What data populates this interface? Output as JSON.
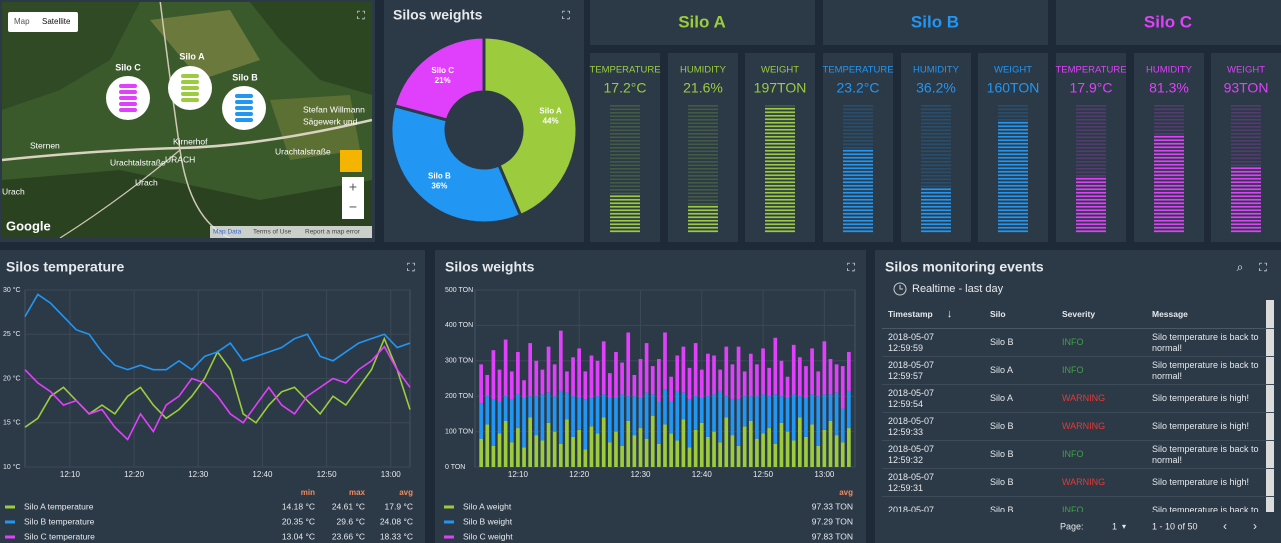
{
  "map": {
    "buttons": [
      "Map",
      "Satellite"
    ],
    "markers": [
      {
        "label": "Silo C",
        "color": "#e040fb"
      },
      {
        "label": "Silo A",
        "color": "#9ccc3d"
      },
      {
        "label": "Silo B",
        "color": "#2196f3"
      }
    ],
    "places": [
      "Stefan Willmann",
      "Sägewerk und",
      "Sternen",
      "Kirnerhof",
      "URACH",
      "Urachtalstraße",
      "Urach",
      "Urach",
      "Urachtalstraße"
    ],
    "logo": "Google",
    "footer": [
      "Map Data",
      "Terms of Use",
      "Report a map error"
    ]
  },
  "chart_data": [
    {
      "type": "pie",
      "title": "Silos weights",
      "categories": [
        "Silo A",
        "Silo B",
        "Silo C"
      ],
      "values": [
        44,
        36,
        21
      ],
      "value_labels": [
        "44%",
        "36%",
        "21%"
      ],
      "colors": [
        "#9ccc3d",
        "#2196f3",
        "#e040fb"
      ]
    },
    {
      "type": "line",
      "title": "Silos temperature",
      "x": [
        "12:03",
        "12:05",
        "12:07",
        "12:09",
        "12:11",
        "12:13",
        "12:15",
        "12:17",
        "12:19",
        "12:21",
        "12:23",
        "12:25",
        "12:27",
        "12:29",
        "12:31",
        "12:33",
        "12:35",
        "12:37",
        "12:39",
        "12:41",
        "12:43",
        "12:45",
        "12:47",
        "12:49",
        "12:51",
        "12:53",
        "12:55",
        "12:57",
        "12:59",
        "13:01",
        "13:03"
      ],
      "xlim": [
        "12:03",
        "13:03"
      ],
      "xticks": [
        "12:10",
        "12:20",
        "12:30",
        "12:40",
        "12:50",
        "13:00"
      ],
      "ylim": [
        10,
        30
      ],
      "yticks": [
        {
          "value": 10,
          "label": "10 °C"
        },
        {
          "value": 15,
          "label": "15 °C"
        },
        {
          "value": 20,
          "label": "20 °C"
        },
        {
          "value": 25,
          "label": "25 °C"
        },
        {
          "value": 30,
          "label": "30 °C"
        }
      ],
      "grid": true,
      "stat_headers": [
        "min",
        "max",
        "avg"
      ],
      "series": [
        {
          "name": "Silo A temperature",
          "color": "#9ccc3d",
          "values": [
            14.5,
            15.5,
            18,
            19,
            17.5,
            16,
            17,
            16,
            18,
            19,
            17,
            15.5,
            16.5,
            18,
            20,
            23,
            21,
            16,
            15,
            17,
            18.5,
            19,
            17.5,
            16,
            18,
            17,
            19,
            21,
            24.5,
            21,
            16.5
          ],
          "stats": [
            "14.18 °C",
            "24.61 °C",
            "17.9 °C"
          ]
        },
        {
          "name": "Silo B temperature",
          "color": "#2196f3",
          "values": [
            27,
            29.5,
            28.5,
            27,
            25.5,
            25,
            23,
            21.5,
            21,
            21.5,
            21,
            21,
            22,
            21,
            22.5,
            23,
            24,
            22,
            22.5,
            23,
            23.5,
            24.5,
            25,
            22.5,
            22,
            23,
            24,
            24.5,
            25,
            23.5,
            24
          ],
          "stats": [
            "20.35 °C",
            "29.6 °C",
            "24.08 °C"
          ]
        },
        {
          "name": "Silo C temperature",
          "color": "#e040fb",
          "values": [
            21,
            19.5,
            18.5,
            17,
            17.5,
            16,
            16.5,
            14.5,
            13.1,
            16,
            14,
            17,
            18,
            20,
            19.5,
            18,
            16,
            15,
            17,
            19,
            17,
            16,
            18,
            19,
            20,
            19.5,
            21,
            22,
            23.6,
            21,
            19
          ],
          "stats": [
            "13.04 °C",
            "23.66 °C",
            "18.33 °C"
          ]
        }
      ]
    },
    {
      "type": "bar",
      "stacked": true,
      "title": "Silos weights",
      "x": [
        "12:04",
        "12:05",
        "12:06",
        "12:07",
        "12:08",
        "12:09",
        "12:10",
        "12:11",
        "12:12",
        "12:13",
        "12:14",
        "12:15",
        "12:16",
        "12:17",
        "12:18",
        "12:19",
        "12:20",
        "12:21",
        "12:22",
        "12:23",
        "12:24",
        "12:25",
        "12:26",
        "12:27",
        "12:28",
        "12:29",
        "12:30",
        "12:31",
        "12:32",
        "12:33",
        "12:34",
        "12:35",
        "12:36",
        "12:37",
        "12:38",
        "12:39",
        "12:40",
        "12:41",
        "12:42",
        "12:43",
        "12:44",
        "12:45",
        "12:46",
        "12:47",
        "12:48",
        "12:49",
        "12:50",
        "12:51",
        "12:52",
        "12:53",
        "12:54",
        "12:55",
        "12:56",
        "12:57",
        "12:58",
        "12:59",
        "13:00",
        "13:01",
        "13:02",
        "13:03",
        "13:04"
      ],
      "xlim": [
        "12:03",
        "13:05"
      ],
      "xticks": [
        "12:10",
        "12:20",
        "12:30",
        "12:40",
        "12:50",
        "13:00"
      ],
      "ylim": [
        0,
        500
      ],
      "yticks": [
        {
          "value": 0,
          "label": "0 TON"
        },
        {
          "value": 100,
          "label": "100 TON"
        },
        {
          "value": 200,
          "label": "200 TON"
        },
        {
          "value": 300,
          "label": "300 TON"
        },
        {
          "value": 400,
          "label": "400 TON"
        },
        {
          "value": 500,
          "label": "500 TON"
        }
      ],
      "grid": true,
      "stat_headers": [
        "avg"
      ],
      "series": [
        {
          "name": "Silo A weight",
          "color": "#9ccc3d",
          "values": [
            80,
            120,
            60,
            95,
            130,
            70,
            110,
            55,
            140,
            90,
            75,
            125,
            100,
            65,
            135,
            85,
            105,
            50,
            115,
            95,
            140,
            70,
            100,
            60,
            130,
            90,
            110,
            80,
            145,
            65,
            120,
            95,
            75,
            135,
            55,
            105,
            125,
            85,
            100,
            70,
            140,
            90,
            60,
            115,
            130,
            80,
            95,
            110,
            65,
            125,
            100,
            75,
            140,
            85,
            120,
            60,
            105,
            130,
            90,
            70,
            110
          ],
          "stats": [
            "97.33 TON"
          ]
        },
        {
          "name": "Silo B weight",
          "color": "#2196f3",
          "values": [
            100,
            80,
            130,
            90,
            70,
            120,
            95,
            140,
            60,
            110,
            130,
            85,
            100,
            150,
            75,
            115,
            90,
            140,
            80,
            105,
            65,
            125,
            95,
            145,
            70,
            110,
            85,
            130,
            60,
            120,
            100,
            90,
            140,
            75,
            135,
            95,
            70,
            115,
            105,
            145,
            60,
            100,
            130,
            85,
            70,
            120,
            110,
            90,
            140,
            75,
            95,
            130,
            60,
            110,
            85,
            140,
            100,
            75,
            120,
            95,
            105
          ],
          "stats": [
            "97.29 TON"
          ]
        },
        {
          "name": "Silo C weight",
          "color": "#e040fb",
          "values": [
            110,
            60,
            140,
            90,
            160,
            80,
            120,
            50,
            150,
            100,
            70,
            130,
            90,
            170,
            60,
            110,
            140,
            80,
            120,
            100,
            150,
            70,
            130,
            90,
            180,
            60,
            110,
            140,
            80,
            120,
            160,
            70,
            100,
            130,
            90,
            150,
            80,
            120,
            110,
            60,
            140,
            100,
            150,
            70,
            120,
            90,
            130,
            80,
            160,
            100,
            60,
            140,
            110,
            90,
            130,
            70,
            150,
            100,
            80,
            120,
            110
          ],
          "stats": [
            "97.83 TON"
          ]
        }
      ]
    }
  ],
  "silos": [
    {
      "name": "Silo A",
      "color": "#9ccc3d",
      "metrics": [
        {
          "label": "TEMPERATURE",
          "value": "17.2°C",
          "level": 30
        },
        {
          "label": "HUMIDITY",
          "value": "21.6%",
          "level": 22
        },
        {
          "label": "WEIGHT",
          "value": "197TON",
          "level": 100
        }
      ]
    },
    {
      "name": "Silo B",
      "color": "#2196f3",
      "metrics": [
        {
          "label": "TEMPERATURE",
          "value": "23.2°C",
          "level": 65
        },
        {
          "label": "HUMIDITY",
          "value": "36.2%",
          "level": 36
        },
        {
          "label": "WEIGHT",
          "value": "160TON",
          "level": 88
        }
      ]
    },
    {
      "name": "Silo C",
      "color": "#e040fb",
      "metrics": [
        {
          "label": "TEMPERATURE",
          "value": "17.9°C",
          "level": 45
        },
        {
          "label": "HUMIDITY",
          "value": "81.3%",
          "level": 78
        },
        {
          "label": "WEIGHT",
          "value": "93TON",
          "level": 52
        }
      ]
    }
  ],
  "events": {
    "title": "Silos monitoring events",
    "subtitle": "Realtime - last day",
    "headers": [
      "Timestamp",
      "Silo",
      "Severity",
      "Message"
    ],
    "severity_colors": {
      "INFO": "#43a047",
      "WARNING": "#e53935"
    },
    "rows": [
      {
        "date": "2018-05-07",
        "time": "12:59:59",
        "silo": "Silo B",
        "severity": "INFO",
        "message": "Silo temperature is back to normal!"
      },
      {
        "date": "2018-05-07",
        "time": "12:59:57",
        "silo": "Silo A",
        "severity": "INFO",
        "message": "Silo temperature is back to normal!"
      },
      {
        "date": "2018-05-07",
        "time": "12:59:54",
        "silo": "Silo A",
        "severity": "WARNING",
        "message": "Silo temperature is high!"
      },
      {
        "date": "2018-05-07",
        "time": "12:59:33",
        "silo": "Silo B",
        "severity": "WARNING",
        "message": "Silo temperature is high!"
      },
      {
        "date": "2018-05-07",
        "time": "12:59:32",
        "silo": "Silo B",
        "severity": "INFO",
        "message": "Silo temperature is back to normal!"
      },
      {
        "date": "2018-05-07",
        "time": "12:59:31",
        "silo": "Silo B",
        "severity": "WARNING",
        "message": "Silo temperature is high!"
      },
      {
        "date": "2018-05-07",
        "silo": "Silo B",
        "severity": "INFO",
        "message": "Silo temperature is back to"
      }
    ],
    "pager": {
      "label": "Page:",
      "page": "1",
      "range": "1 - 10 of 50"
    }
  }
}
